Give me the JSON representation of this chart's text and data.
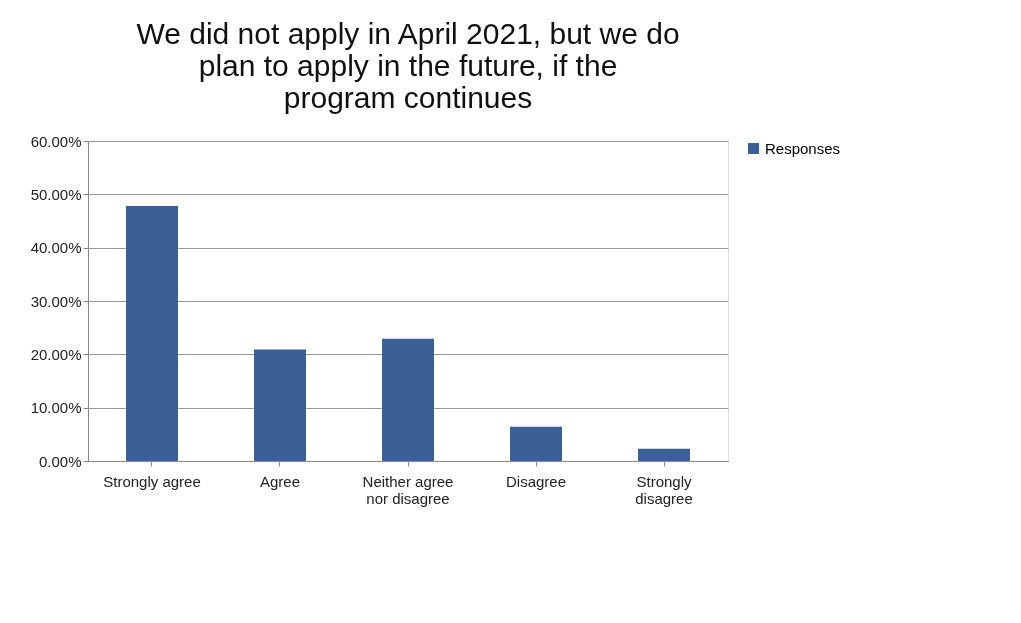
{
  "chart_data": {
    "type": "bar",
    "title": "We did not apply in April 2021, but we do plan to apply in the future, if the program continues",
    "categories": [
      "Strongly agree",
      "Agree",
      "Neither agree nor disagree",
      "Disagree",
      "Strongly disagree"
    ],
    "series": [
      {
        "name": "Responses",
        "color": "#3b6096",
        "values": [
          47.8,
          20.9,
          22.9,
          6.4,
          2.3
        ]
      }
    ],
    "ylim": [
      0,
      60
    ],
    "yticks": [
      {
        "value": 0,
        "label": "0.00%"
      },
      {
        "value": 10,
        "label": "10.00%"
      },
      {
        "value": 20,
        "label": "20.00%"
      },
      {
        "value": 30,
        "label": "30.00%"
      },
      {
        "value": 40,
        "label": "40.00%"
      },
      {
        "value": 50,
        "label": "50.00%"
      },
      {
        "value": 60,
        "label": "60.00%"
      }
    ],
    "grid": "y",
    "legend": "right"
  }
}
